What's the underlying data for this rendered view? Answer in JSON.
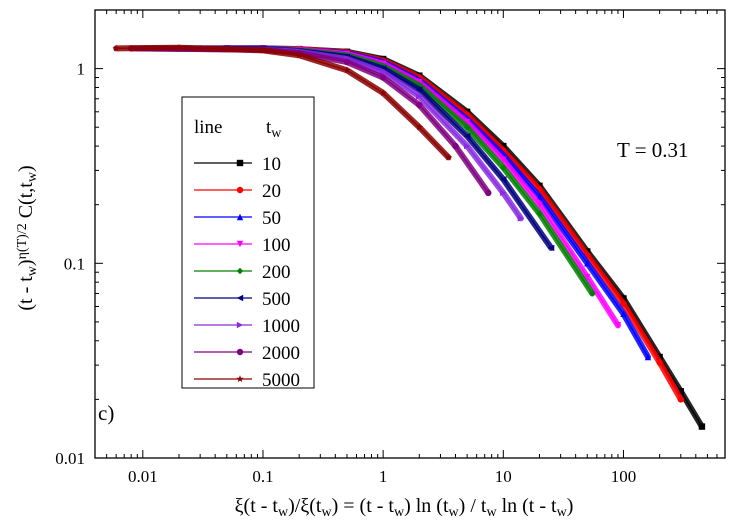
{
  "chart_data": {
    "type": "line",
    "title": "",
    "panel_label": "c)",
    "annotation": "T = 0.31",
    "xlabel": {
      "parts": [
        "ξ(t - t",
        "w",
        ")/ξ(t",
        "w",
        ") = (t - t",
        "w",
        ") ln (t",
        "w",
        ") / t",
        "w",
        " ln (t - t",
        "w",
        ")"
      ],
      "sub": [
        false,
        true,
        false,
        true,
        false,
        true,
        false,
        true,
        false,
        true,
        false,
        true,
        false
      ]
    },
    "ylabel": {
      "parts": [
        "(t - t",
        "w",
        ")",
        "η(T)/2",
        " C(t,t",
        "w",
        ")"
      ],
      "style": [
        "n",
        "sub",
        "n",
        "sup",
        "n",
        "sub",
        "n"
      ]
    },
    "x_scale": "log",
    "y_scale": "log",
    "xlim": [
      0.004,
      700
    ],
    "ylim": [
      0.01,
      2.0
    ],
    "x_ticks": [
      0.01,
      0.1,
      1,
      10,
      100
    ],
    "x_tick_labels": [
      "0.01",
      "0.1",
      "1",
      "10",
      "100"
    ],
    "y_ticks": [
      0.01,
      0.1,
      1
    ],
    "y_tick_labels": [
      "0.01",
      "0.1",
      "1"
    ],
    "grid": false,
    "legend": {
      "placement": "center-left",
      "header_left": "line",
      "header_right_base": "t",
      "header_right_sub": "w"
    },
    "series": [
      {
        "name": "10",
        "color": "#000000",
        "marker": "square",
        "x": [
          0.05,
          0.1,
          0.2,
          0.5,
          1,
          2,
          5,
          10,
          20,
          50,
          100,
          200,
          300,
          450
        ],
        "y": [
          1.27,
          1.27,
          1.26,
          1.22,
          1.12,
          0.92,
          0.6,
          0.4,
          0.25,
          0.115,
          0.066,
          0.033,
          0.022,
          0.0145
        ]
      },
      {
        "name": "20",
        "color": "#ff0000",
        "marker": "circle",
        "x": [
          0.03,
          0.1,
          0.2,
          0.5,
          1,
          2,
          5,
          10,
          20,
          50,
          100,
          200,
          300
        ],
        "y": [
          1.27,
          1.27,
          1.26,
          1.21,
          1.1,
          0.9,
          0.58,
          0.38,
          0.24,
          0.11,
          0.062,
          0.031,
          0.02
        ]
      },
      {
        "name": "50",
        "color": "#0000ff",
        "marker": "triangle-up",
        "x": [
          0.02,
          0.1,
          0.2,
          0.5,
          1,
          2,
          5,
          10,
          20,
          50,
          100,
          160
        ],
        "y": [
          1.27,
          1.27,
          1.25,
          1.2,
          1.08,
          0.87,
          0.55,
          0.36,
          0.22,
          0.1,
          0.055,
          0.033
        ]
      },
      {
        "name": "100",
        "color": "#ff00ff",
        "marker": "triangle-down",
        "x": [
          0.015,
          0.1,
          0.2,
          0.5,
          1,
          2,
          5,
          10,
          20,
          50,
          90
        ],
        "y": [
          1.27,
          1.26,
          1.25,
          1.19,
          1.06,
          0.85,
          0.53,
          0.34,
          0.2,
          0.085,
          0.048
        ]
      },
      {
        "name": "200",
        "color": "#008000",
        "marker": "diamond",
        "x": [
          0.012,
          0.1,
          0.2,
          0.5,
          1,
          2,
          5,
          10,
          20,
          55
        ],
        "y": [
          1.27,
          1.26,
          1.24,
          1.17,
          1.03,
          0.82,
          0.5,
          0.31,
          0.18,
          0.07
        ]
      },
      {
        "name": "500",
        "color": "#000080",
        "marker": "triangle-left",
        "x": [
          0.01,
          0.1,
          0.2,
          0.5,
          1,
          2,
          5,
          10,
          25
        ],
        "y": [
          1.27,
          1.26,
          1.23,
          1.15,
          1.0,
          0.78,
          0.45,
          0.27,
          0.12
        ]
      },
      {
        "name": "1000",
        "color": "#8a2be2",
        "marker": "triangle-right",
        "x": [
          0.009,
          0.1,
          0.2,
          0.5,
          1,
          2,
          5,
          10,
          14
        ],
        "y": [
          1.27,
          1.25,
          1.22,
          1.12,
          0.96,
          0.72,
          0.4,
          0.23,
          0.17
        ]
      },
      {
        "name": "2000",
        "color": "#800080",
        "marker": "circle",
        "x": [
          0.008,
          0.1,
          0.2,
          0.5,
          1,
          2,
          4,
          7.5
        ],
        "y": [
          1.27,
          1.25,
          1.2,
          1.08,
          0.9,
          0.65,
          0.4,
          0.23
        ]
      },
      {
        "name": "5000",
        "color": "#8b0000",
        "marker": "star",
        "x": [
          0.006,
          0.02,
          0.1,
          0.2,
          0.5,
          1,
          2,
          3.5
        ],
        "y": [
          1.27,
          1.28,
          1.24,
          1.17,
          0.98,
          0.75,
          0.5,
          0.35
        ]
      }
    ]
  }
}
